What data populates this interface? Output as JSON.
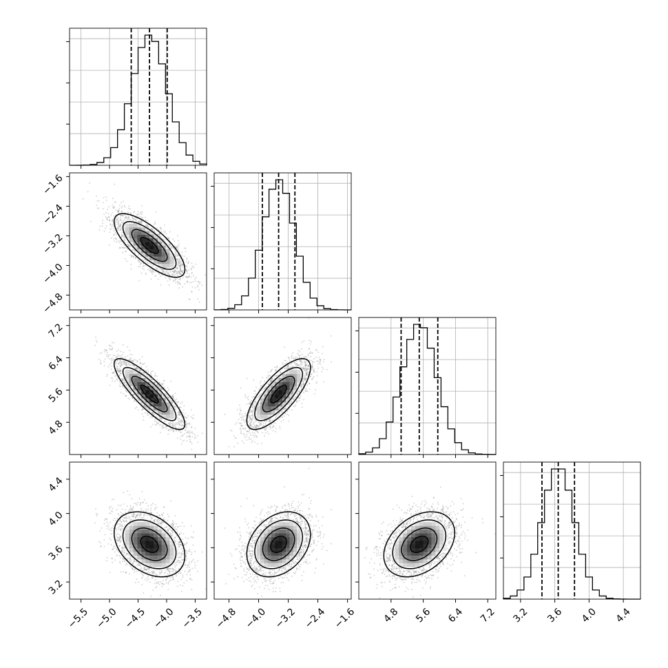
{
  "chart_data": {
    "type": "corner",
    "title": "",
    "parameters": [
      {
        "index": 0,
        "label": "",
        "range": [
          -5.7,
          -3.3
        ],
        "ticks": [
          -5.5,
          -5.0,
          -4.5,
          -4.0,
          -3.5
        ],
        "tick_labels": [
          "−5.5",
          "−5.0",
          "−4.5",
          "−4.0",
          "−3.5"
        ],
        "mean": -4.3,
        "sd": 0.31,
        "quantiles": [
          -4.62,
          -4.3,
          -3.99
        ]
      },
      {
        "index": 1,
        "label": "",
        "range": [
          -5.2,
          -1.5
        ],
        "ticks": [
          -4.8,
          -4.0,
          -3.2,
          -2.4,
          -1.6
        ],
        "tick_labels": [
          "−4.8",
          "−4.0",
          "−3.2",
          "−2.4",
          "−1.6"
        ],
        "mean": -3.46,
        "sd": 0.43,
        "quantiles": [
          -3.9,
          -3.46,
          -3.02
        ]
      },
      {
        "index": 2,
        "label": "",
        "range": [
          4.0,
          7.4
        ],
        "ticks": [
          4.8,
          5.6,
          6.4,
          7.2
        ],
        "tick_labels": [
          "4.8",
          "5.6",
          "6.4",
          "7.2"
        ],
        "mean": 5.5,
        "sd": 0.44,
        "quantiles": [
          5.05,
          5.5,
          5.96
        ]
      },
      {
        "index": 3,
        "label": "",
        "range": [
          3.0,
          4.6
        ],
        "ticks": [
          3.2,
          3.6,
          4.0,
          4.4
        ],
        "tick_labels": [
          "3.2",
          "3.6",
          "4.0",
          "4.4"
        ],
        "mean": 3.64,
        "sd": 0.19,
        "quantiles": [
          3.45,
          3.64,
          3.83
        ]
      }
    ],
    "correlations": [
      {
        "pair": [
          0,
          1
        ],
        "rho": -0.75
      },
      {
        "pair": [
          0,
          2
        ],
        "rho": -0.85
      },
      {
        "pair": [
          1,
          2
        ],
        "rho": 0.75
      },
      {
        "pair": [
          0,
          3
        ],
        "rho": -0.35
      },
      {
        "pair": [
          1,
          3
        ],
        "rho": 0.3
      },
      {
        "pair": [
          2,
          3
        ],
        "rho": 0.35
      }
    ],
    "histogram_bins": 20,
    "contour_levels_sigma": [
      0.5,
      1.0,
      1.5,
      2.0
    ],
    "grid": true,
    "legend": "none"
  }
}
